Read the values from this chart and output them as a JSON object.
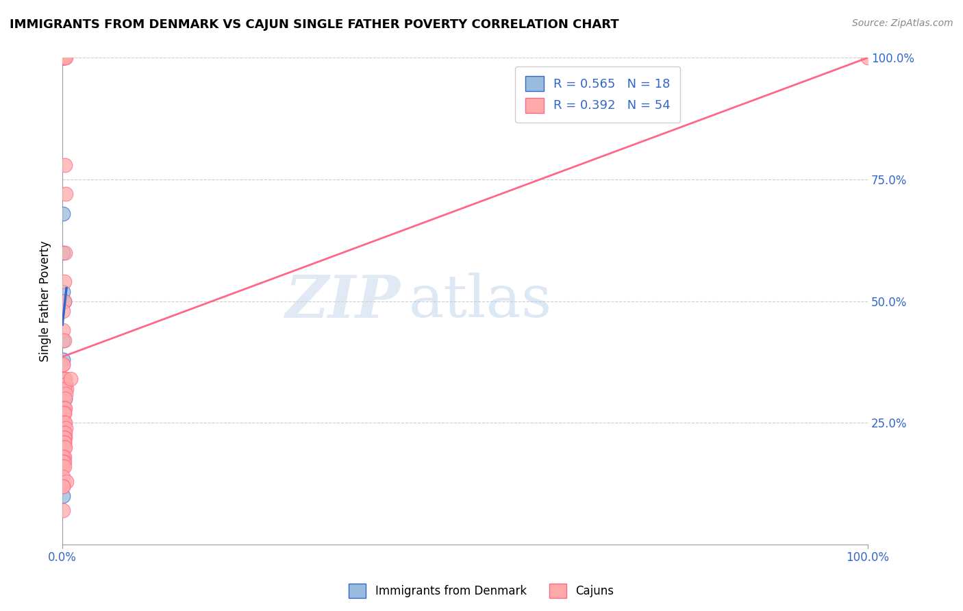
{
  "title": "IMMIGRANTS FROM DENMARK VS CAJUN SINGLE FATHER POVERTY CORRELATION CHART",
  "source": "Source: ZipAtlas.com",
  "ylabel": "Single Father Poverty",
  "xlim": [
    0,
    1
  ],
  "ylim": [
    0,
    1
  ],
  "watermark_zip": "ZIP",
  "watermark_atlas": "atlas",
  "legend_r1": "R = 0.565",
  "legend_n1": "N = 18",
  "legend_r2": "R = 0.392",
  "legend_n2": "N = 54",
  "color_blue": "#99BBDD",
  "color_pink": "#FFAAAA",
  "trendline_blue": "#3366CC",
  "trendline_pink": "#FF6688",
  "denmark_x": [
    0.001,
    0.001,
    0.002,
    0.001,
    0.001,
    0.001,
    0.002,
    0.001,
    0.001,
    0.002,
    0.001,
    0.003,
    0.001,
    0.001,
    0.001,
    0.001,
    0.001,
    0.001
  ],
  "denmark_y": [
    1.0,
    1.0,
    1.0,
    0.68,
    0.6,
    0.52,
    0.5,
    0.42,
    0.38,
    0.34,
    0.32,
    0.3,
    0.28,
    0.28,
    0.27,
    0.27,
    0.22,
    0.1
  ],
  "cajun_x": [
    0.001,
    0.002,
    0.001,
    0.003,
    0.001,
    0.002,
    0.004,
    0.003,
    0.004,
    0.003,
    0.002,
    0.002,
    0.001,
    0.001,
    0.002,
    0.001,
    0.001,
    0.003,
    0.003,
    0.004,
    0.005,
    0.002,
    0.004,
    0.003,
    0.001,
    0.002,
    0.003,
    0.002,
    0.001,
    0.002,
    0.002,
    0.003,
    0.004,
    0.002,
    0.003,
    0.003,
    0.002,
    0.002,
    0.002,
    0.002,
    0.003,
    0.002,
    0.001,
    0.002,
    0.001,
    0.001,
    0.002,
    0.001,
    0.005,
    0.001,
    0.001,
    0.001,
    0.01,
    1.0
  ],
  "cajun_y": [
    1.0,
    1.0,
    1.0,
    1.0,
    1.0,
    1.0,
    1.0,
    0.78,
    0.72,
    0.6,
    0.54,
    0.5,
    0.48,
    0.44,
    0.42,
    0.37,
    0.37,
    0.34,
    0.34,
    0.33,
    0.32,
    0.32,
    0.31,
    0.3,
    0.28,
    0.28,
    0.28,
    0.27,
    0.27,
    0.27,
    0.25,
    0.25,
    0.24,
    0.23,
    0.23,
    0.22,
    0.22,
    0.21,
    0.21,
    0.2,
    0.2,
    0.18,
    0.18,
    0.17,
    0.17,
    0.16,
    0.16,
    0.14,
    0.13,
    0.12,
    0.12,
    0.07,
    0.34,
    1.0
  ]
}
